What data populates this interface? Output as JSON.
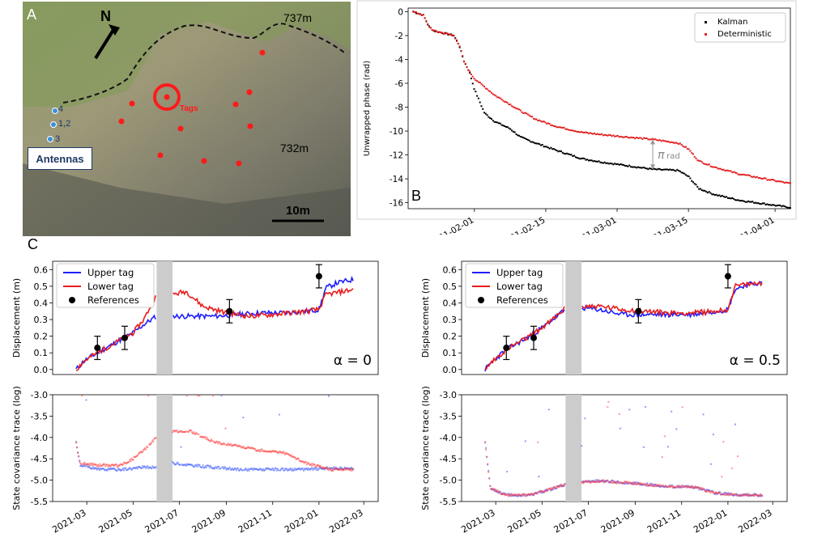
{
  "panel_labels": {
    "a": "A",
    "b": "B",
    "c": "C"
  },
  "map": {
    "north_label": "N",
    "elev_top": "737m",
    "elev_mid": "732m",
    "tags_label": "Tags",
    "antenna_labels": [
      "4",
      "1,2",
      "3"
    ],
    "antennas_box": "Antennas",
    "scale_label": "10m",
    "colors": {
      "tag": "#ff1a1a",
      "antenna": "#3b8fd9",
      "crest": "#111111"
    }
  },
  "chart_data": [
    {
      "id": "B",
      "type": "scatter",
      "ylabel": "Unwrapped phase (rad)",
      "xlabel": "",
      "ylim": [
        -16.5,
        0.3
      ],
      "yticks": [
        0,
        -2,
        -4,
        -6,
        -8,
        -10,
        -12,
        -14,
        -16
      ],
      "xlim": [
        "2021-01-19",
        "2021-04-04"
      ],
      "xticks": [
        "2021-02-01",
        "2021-02-15",
        "2021-03-01",
        "2021-03-15",
        "2021-04-01"
      ],
      "legend_position": "top-right",
      "annotation": {
        "text_main": "π",
        "text_sub": "rad",
        "date": "2021-03-08",
        "from": -10.7,
        "to": -13.2
      },
      "series": [
        {
          "name": "Kalman",
          "color": "#000000",
          "points": [
            [
              "2021-01-20",
              0
            ],
            [
              "2021-01-22",
              -0.3
            ],
            [
              "2021-01-23",
              -1.2
            ],
            [
              "2021-01-24",
              -1.6
            ],
            [
              "2021-01-26",
              -1.8
            ],
            [
              "2021-01-28",
              -2.0
            ],
            [
              "2021-01-29",
              -2.8
            ],
            [
              "2021-01-30",
              -4.2
            ],
            [
              "2021-01-31",
              -5.0
            ],
            [
              "2021-02-01",
              -6.5
            ],
            [
              "2021-02-02",
              -7.5
            ],
            [
              "2021-02-03",
              -8.5
            ],
            [
              "2021-02-05",
              -9.2
            ],
            [
              "2021-02-08",
              -9.8
            ],
            [
              "2021-02-10",
              -10.5
            ],
            [
              "2021-02-13",
              -11.0
            ],
            [
              "2021-02-17",
              -11.6
            ],
            [
              "2021-02-22",
              -12.3
            ],
            [
              "2021-02-26",
              -12.6
            ],
            [
              "2021-03-03",
              -12.9
            ],
            [
              "2021-03-08",
              -13.2
            ],
            [
              "2021-03-13",
              -13.3
            ],
            [
              "2021-03-15",
              -13.8
            ],
            [
              "2021-03-17",
              -14.8
            ],
            [
              "2021-03-20",
              -15.3
            ],
            [
              "2021-03-25",
              -15.8
            ],
            [
              "2021-03-30",
              -16.1
            ],
            [
              "2021-04-04",
              -16.4
            ]
          ]
        },
        {
          "name": "Deterministic",
          "color": "#e32222",
          "points": [
            [
              "2021-01-20",
              0
            ],
            [
              "2021-01-22",
              -0.3
            ],
            [
              "2021-01-23",
              -1.2
            ],
            [
              "2021-01-24",
              -1.6
            ],
            [
              "2021-01-26",
              -1.8
            ],
            [
              "2021-01-28",
              -2.0
            ],
            [
              "2021-01-29",
              -2.8
            ],
            [
              "2021-01-30",
              -4.2
            ],
            [
              "2021-01-31",
              -5.0
            ],
            [
              "2021-02-01",
              -5.6
            ],
            [
              "2021-02-03",
              -6.3
            ],
            [
              "2021-02-05",
              -7.0
            ],
            [
              "2021-02-07",
              -7.5
            ],
            [
              "2021-02-10",
              -8.3
            ],
            [
              "2021-02-13",
              -9.0
            ],
            [
              "2021-02-17",
              -9.6
            ],
            [
              "2021-02-22",
              -10.1
            ],
            [
              "2021-02-26",
              -10.3
            ],
            [
              "2021-03-03",
              -10.5
            ],
            [
              "2021-03-08",
              -10.7
            ],
            [
              "2021-03-13",
              -11.0
            ],
            [
              "2021-03-15",
              -11.5
            ],
            [
              "2021-03-17",
              -12.5
            ],
            [
              "2021-03-20",
              -13.0
            ],
            [
              "2021-03-25",
              -13.6
            ],
            [
              "2021-03-30",
              -14.0
            ],
            [
              "2021-04-04",
              -14.4
            ]
          ]
        }
      ]
    },
    {
      "id": "C-displacement-alpha0",
      "type": "line",
      "ylabel": "Displacement (m)",
      "xlabel": "",
      "ylim": [
        -0.03,
        0.65
      ],
      "yticks": [
        0.0,
        0.1,
        0.2,
        0.3,
        0.4,
        0.5,
        0.6
      ],
      "xlim": [
        "2021-01-15",
        "2022-03-20"
      ],
      "gap": [
        "2021-06-01",
        "2021-06-22"
      ],
      "alpha_label": "α = 0",
      "legend_position": "top-left",
      "series": [
        {
          "name": "Upper tag",
          "color": "#1f1fff",
          "points": [
            [
              "2021-02-15",
              0.0
            ],
            [
              "2021-02-25",
              0.05
            ],
            [
              "2021-03-15",
              0.1
            ],
            [
              "2021-04-15",
              0.18
            ],
            [
              "2021-05-01",
              0.22
            ],
            [
              "2021-05-15",
              0.27
            ],
            [
              "2021-06-01",
              0.32
            ],
            [
              "2021-06-22",
              0.32
            ],
            [
              "2021-07-15",
              0.32
            ],
            [
              "2021-08-15",
              0.32
            ],
            [
              "2021-09-15",
              0.33
            ],
            [
              "2021-10-15",
              0.34
            ],
            [
              "2021-11-15",
              0.34
            ],
            [
              "2021-12-15",
              0.35
            ],
            [
              "2022-01-01",
              0.36
            ],
            [
              "2022-01-10",
              0.49
            ],
            [
              "2022-01-25",
              0.52
            ],
            [
              "2022-02-15",
              0.54
            ]
          ]
        },
        {
          "name": "Lower tag",
          "color": "#e81c1c",
          "points": [
            [
              "2021-02-15",
              0.0
            ],
            [
              "2021-02-25",
              0.05
            ],
            [
              "2021-03-15",
              0.1
            ],
            [
              "2021-04-15",
              0.18
            ],
            [
              "2021-05-01",
              0.22
            ],
            [
              "2021-05-15",
              0.3
            ],
            [
              "2021-06-01",
              0.45
            ],
            [
              "2021-06-22",
              0.45
            ],
            [
              "2021-07-10",
              0.47
            ],
            [
              "2021-08-01",
              0.38
            ],
            [
              "2021-09-01",
              0.34
            ],
            [
              "2021-10-01",
              0.32
            ],
            [
              "2021-11-01",
              0.33
            ],
            [
              "2021-12-15",
              0.35
            ],
            [
              "2022-01-01",
              0.36
            ],
            [
              "2022-01-10",
              0.45
            ],
            [
              "2022-02-15",
              0.48
            ]
          ]
        }
      ],
      "references": {
        "name": "References",
        "color": "#000000",
        "points": [
          {
            "x": "2021-03-15",
            "y": 0.13,
            "err": 0.07
          },
          {
            "x": "2021-04-20",
            "y": 0.19,
            "err": 0.07
          },
          {
            "x": "2021-09-05",
            "y": 0.35,
            "err": 0.07
          },
          {
            "x": "2022-01-01",
            "y": 0.56,
            "err": 0.07
          }
        ]
      }
    },
    {
      "id": "C-displacement-alpha05",
      "type": "line",
      "ylabel": "Displacement (m)",
      "xlabel": "",
      "ylim": [
        -0.03,
        0.65
      ],
      "yticks": [
        0.0,
        0.1,
        0.2,
        0.3,
        0.4,
        0.5,
        0.6
      ],
      "xlim": [
        "2021-01-15",
        "2022-03-20"
      ],
      "gap": [
        "2021-06-01",
        "2021-06-22"
      ],
      "alpha_label": "α = 0.5",
      "legend_position": "top-left",
      "series": [
        {
          "name": "Upper tag",
          "color": "#1f1fff",
          "points": [
            [
              "2021-02-15",
              0.0
            ],
            [
              "2021-02-25",
              0.05
            ],
            [
              "2021-03-15",
              0.12
            ],
            [
              "2021-04-15",
              0.2
            ],
            [
              "2021-05-01",
              0.25
            ],
            [
              "2021-05-15",
              0.3
            ],
            [
              "2021-06-01",
              0.36
            ],
            [
              "2021-06-22",
              0.37
            ],
            [
              "2021-07-15",
              0.36
            ],
            [
              "2021-08-15",
              0.33
            ],
            [
              "2021-09-15",
              0.33
            ],
            [
              "2021-10-15",
              0.33
            ],
            [
              "2021-11-15",
              0.33
            ],
            [
              "2021-12-15",
              0.35
            ],
            [
              "2022-01-01",
              0.36
            ],
            [
              "2022-01-10",
              0.48
            ],
            [
              "2022-01-25",
              0.51
            ],
            [
              "2022-02-15",
              0.52
            ]
          ]
        },
        {
          "name": "Lower tag",
          "color": "#e81c1c",
          "points": [
            [
              "2021-02-15",
              0.0
            ],
            [
              "2021-02-25",
              0.05
            ],
            [
              "2021-03-15",
              0.12
            ],
            [
              "2021-04-15",
              0.2
            ],
            [
              "2021-05-01",
              0.25
            ],
            [
              "2021-05-15",
              0.3
            ],
            [
              "2021-06-01",
              0.37
            ],
            [
              "2021-06-22",
              0.38
            ],
            [
              "2021-07-15",
              0.38
            ],
            [
              "2021-08-15",
              0.36
            ],
            [
              "2021-09-15",
              0.35
            ],
            [
              "2021-10-15",
              0.34
            ],
            [
              "2021-11-15",
              0.34
            ],
            [
              "2021-12-15",
              0.35
            ],
            [
              "2022-01-01",
              0.36
            ],
            [
              "2022-01-10",
              0.5
            ],
            [
              "2022-01-25",
              0.51
            ],
            [
              "2022-02-15",
              0.52
            ]
          ]
        }
      ],
      "references": {
        "name": "References",
        "color": "#000000",
        "points": [
          {
            "x": "2021-03-15",
            "y": 0.13,
            "err": 0.07
          },
          {
            "x": "2021-04-20",
            "y": 0.19,
            "err": 0.07
          },
          {
            "x": "2021-09-05",
            "y": 0.35,
            "err": 0.07
          },
          {
            "x": "2022-01-01",
            "y": 0.56,
            "err": 0.07
          }
        ]
      }
    },
    {
      "id": "C-covariance-alpha0",
      "type": "scatter",
      "ylabel": "State covariance trace (log)",
      "xlabel": "",
      "ylim": [
        -5.5,
        -3.0
      ],
      "yticks": [
        -3.0,
        -3.5,
        -4.0,
        -4.5,
        -5.0,
        -5.5
      ],
      "xlim": [
        "2021-01-15",
        "2022-03-20"
      ],
      "xticks": [
        "2021-03",
        "2021-05",
        "2021-07",
        "2021-09",
        "2021-11",
        "2022-01",
        "2022-03"
      ],
      "gap": [
        "2021-06-01",
        "2021-06-22"
      ],
      "series": [
        {
          "name": "Upper tag",
          "color": "#3050ff",
          "points": [
            [
              "2021-02-15",
              -4.1
            ],
            [
              "2021-02-20",
              -4.65
            ],
            [
              "2021-03-15",
              -4.75
            ],
            [
              "2021-04-15",
              -4.75
            ],
            [
              "2021-05-15",
              -4.7
            ],
            [
              "2021-06-01",
              -4.7
            ],
            [
              "2021-06-22",
              -4.6
            ],
            [
              "2021-07-15",
              -4.65
            ],
            [
              "2021-08-15",
              -4.7
            ],
            [
              "2021-09-15",
              -4.75
            ],
            [
              "2021-10-15",
              -4.75
            ],
            [
              "2021-11-15",
              -4.75
            ],
            [
              "2021-12-15",
              -4.75
            ],
            [
              "2022-01-15",
              -4.72
            ],
            [
              "2022-02-15",
              -4.72
            ]
          ]
        },
        {
          "name": "Lower tag",
          "color": "#ff3030",
          "points": [
            [
              "2021-02-15",
              -4.1
            ],
            [
              "2021-02-20",
              -4.6
            ],
            [
              "2021-03-15",
              -4.65
            ],
            [
              "2021-04-15",
              -4.65
            ],
            [
              "2021-05-01",
              -4.5
            ],
            [
              "2021-05-15",
              -4.3
            ],
            [
              "2021-06-01",
              -4.0
            ],
            [
              "2021-06-22",
              -3.85
            ],
            [
              "2021-07-15",
              -3.85
            ],
            [
              "2021-08-15",
              -4.1
            ],
            [
              "2021-09-15",
              -4.2
            ],
            [
              "2021-10-15",
              -4.3
            ],
            [
              "2021-11-15",
              -4.35
            ],
            [
              "2021-12-15",
              -4.6
            ],
            [
              "2022-01-15",
              -4.75
            ],
            [
              "2022-02-15",
              -4.75
            ]
          ]
        }
      ]
    },
    {
      "id": "C-covariance-alpha05",
      "type": "scatter",
      "ylabel": "State covariance trace (log)",
      "xlabel": "",
      "ylim": [
        -5.5,
        -3.0
      ],
      "yticks": [
        -3.0,
        -3.5,
        -4.0,
        -4.5,
        -5.0,
        -5.5
      ],
      "xlim": [
        "2021-01-15",
        "2022-03-20"
      ],
      "xticks": [
        "2021-03",
        "2021-05",
        "2021-07",
        "2021-09",
        "2021-11",
        "2022-01",
        "2022-03"
      ],
      "gap": [
        "2021-06-01",
        "2021-06-22"
      ],
      "series": [
        {
          "name": "Upper tag",
          "color": "#4040ff",
          "points": [
            [
              "2021-02-15",
              -4.1
            ],
            [
              "2021-02-22",
              -5.2
            ],
            [
              "2021-03-15",
              -5.35
            ],
            [
              "2021-04-15",
              -5.35
            ],
            [
              "2021-05-15",
              -5.2
            ],
            [
              "2021-06-01",
              -5.1
            ],
            [
              "2021-06-22",
              -5.05
            ],
            [
              "2021-07-15",
              -5.02
            ],
            [
              "2021-08-15",
              -5.05
            ],
            [
              "2021-09-15",
              -5.1
            ],
            [
              "2021-10-15",
              -5.15
            ],
            [
              "2021-11-15",
              -5.15
            ],
            [
              "2021-12-15",
              -5.3
            ],
            [
              "2022-01-15",
              -5.35
            ],
            [
              "2022-02-15",
              -5.35
            ]
          ]
        },
        {
          "name": "Lower tag",
          "color": "#ff4040",
          "points": [
            [
              "2021-02-15",
              -4.1
            ],
            [
              "2021-02-22",
              -5.2
            ],
            [
              "2021-03-15",
              -5.35
            ],
            [
              "2021-04-15",
              -5.35
            ],
            [
              "2021-05-15",
              -5.2
            ],
            [
              "2021-06-01",
              -5.1
            ],
            [
              "2021-06-22",
              -5.05
            ],
            [
              "2021-07-15",
              -5.02
            ],
            [
              "2021-08-15",
              -5.05
            ],
            [
              "2021-09-15",
              -5.1
            ],
            [
              "2021-10-15",
              -5.15
            ],
            [
              "2021-11-15",
              -5.15
            ],
            [
              "2021-12-15",
              -5.3
            ],
            [
              "2022-01-15",
              -5.35
            ],
            [
              "2022-02-15",
              -5.35
            ]
          ]
        }
      ]
    }
  ]
}
